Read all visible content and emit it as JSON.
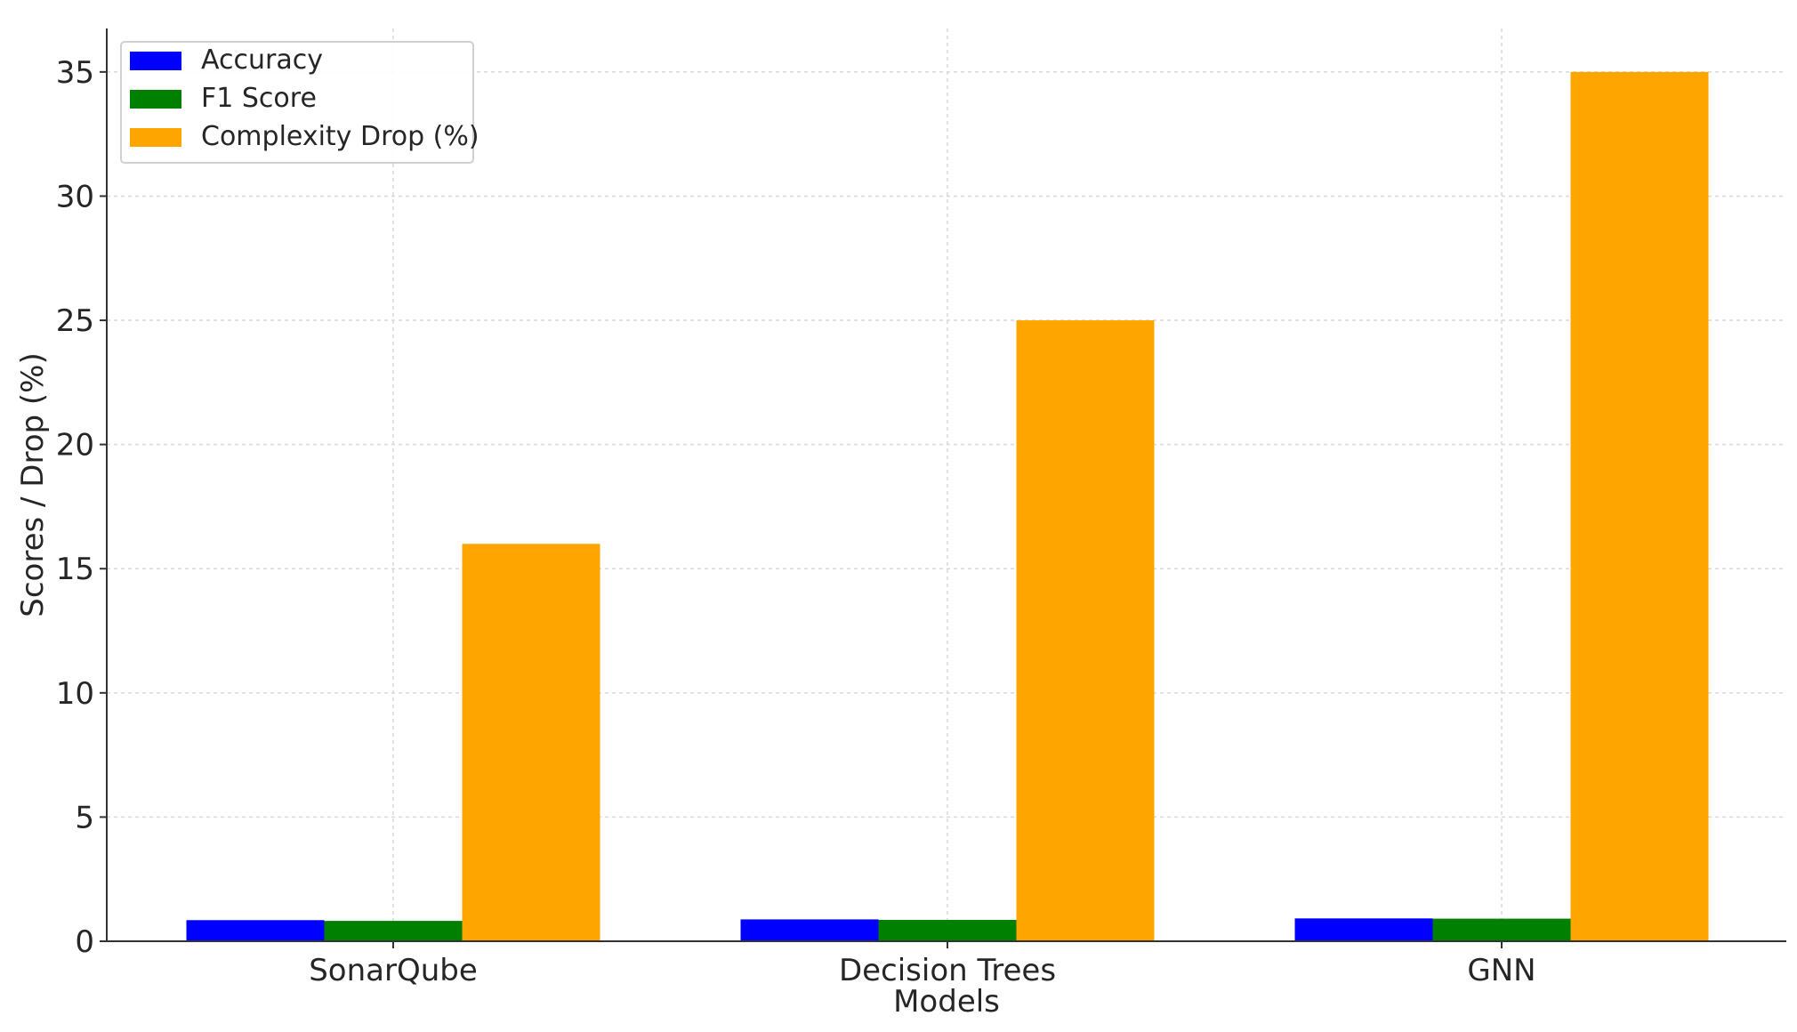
{
  "chart_data": {
    "type": "bar",
    "title": "",
    "xlabel": "Models",
    "ylabel": "Scores / Drop (%)",
    "categories": [
      "SonarQube",
      "Decision Trees",
      "GNN"
    ],
    "series": [
      {
        "name": "Accuracy",
        "color": "#0000ff",
        "values": [
          0.85,
          0.88,
          0.92
        ]
      },
      {
        "name": "F1 Score",
        "color": "#008000",
        "values": [
          0.82,
          0.86,
          0.91
        ]
      },
      {
        "name": "Complexity Drop (%)",
        "color": "#ffa500",
        "values": [
          16,
          25,
          35
        ]
      }
    ],
    "ylim": [
      0,
      36.75
    ],
    "yticks": [
      0,
      5,
      10,
      15,
      20,
      25,
      30,
      35
    ],
    "grid": true,
    "legend_position": "top-left"
  }
}
